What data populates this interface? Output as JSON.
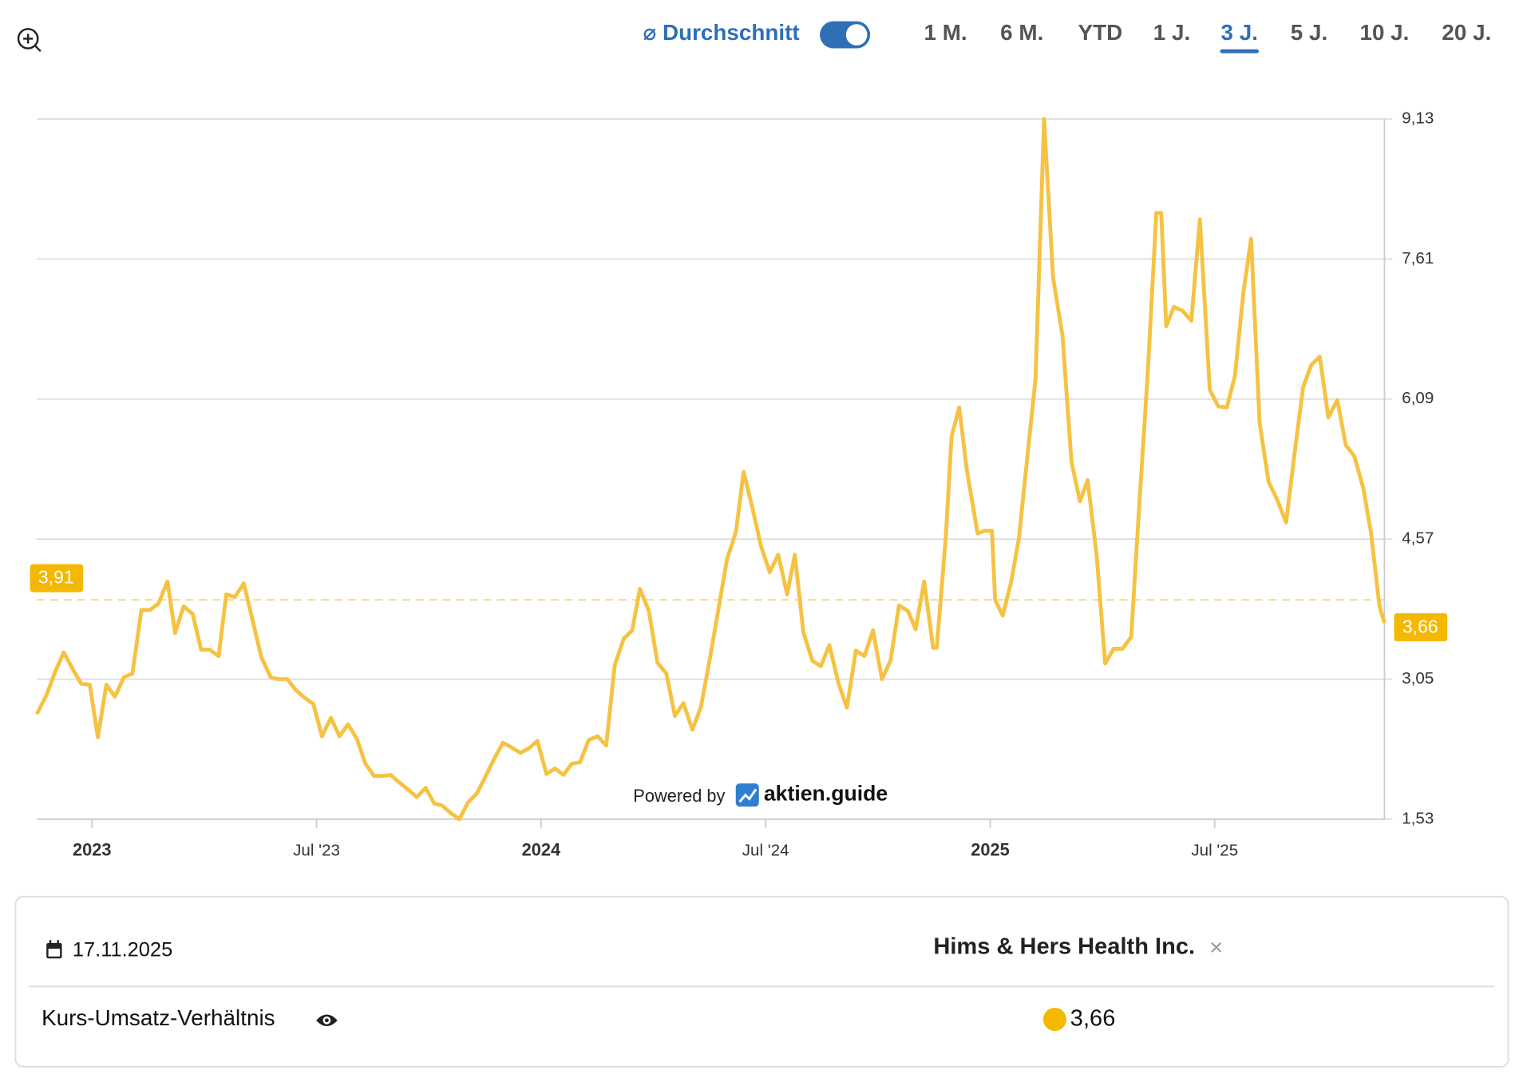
{
  "toolbar": {
    "average_toggle_label": "⌀ Durchschnitt",
    "average_on": true,
    "ranges": [
      "1 M.",
      "6 M.",
      "YTD",
      "1 J.",
      "3 J.",
      "5 J.",
      "10 J.",
      "20 J."
    ],
    "active_range": 4
  },
  "watermark": {
    "prefix": "Powered by",
    "brand": "aktien.guide"
  },
  "chart_data": {
    "type": "line",
    "color": "#f5c242",
    "x": [
      2022.877,
      2022.899,
      2022.918,
      2022.937,
      2022.957,
      2022.976,
      2022.995,
      2023.013,
      2023.032,
      2023.051,
      2023.071,
      2023.09,
      2023.11,
      2023.129,
      2023.148,
      2023.168,
      2023.185,
      2023.204,
      2023.224,
      2023.243,
      2023.262,
      2023.282,
      2023.299,
      2023.318,
      2023.338,
      2023.357,
      2023.377,
      2023.398,
      2023.415,
      2023.435,
      2023.454,
      2023.473,
      2023.493,
      2023.512,
      2023.532,
      2023.551,
      2023.57,
      2023.59,
      2023.609,
      2023.628,
      2023.648,
      2023.665,
      2023.684,
      2023.704,
      2023.723,
      2023.743,
      2023.762,
      2023.779,
      2023.798,
      2023.818,
      2023.837,
      2023.857,
      2023.876,
      2023.895,
      2023.915,
      2023.934,
      2023.954,
      2023.973,
      2023.992,
      2024.012,
      2024.031,
      2024.05,
      2024.068,
      2024.087,
      2024.106,
      2024.126,
      2024.145,
      2024.164,
      2024.184,
      2024.203,
      2024.22,
      2024.24,
      2024.259,
      2024.279,
      2024.298,
      2024.317,
      2024.337,
      2024.356,
      2024.375,
      2024.395,
      2024.414,
      2024.434,
      2024.451,
      2024.47,
      2024.49,
      2024.509,
      2024.528,
      2024.548,
      2024.565,
      2024.584,
      2024.604,
      2024.623,
      2024.642,
      2024.662,
      2024.681,
      2024.701,
      2024.72,
      2024.739,
      2024.759,
      2024.778,
      2024.797,
      2024.817,
      2024.834,
      2024.853,
      2024.873,
      2024.881,
      2024.901,
      2024.914,
      2024.931,
      2024.948,
      2024.972,
      2024.987,
      2025.004,
      2025.011,
      2025.028,
      2025.047,
      2025.064,
      2025.084,
      2025.101,
      2025.12,
      2025.14,
      2025.161,
      2025.181,
      2025.2,
      2025.217,
      2025.237,
      2025.256,
      2025.275,
      2025.295,
      2025.314,
      2025.331,
      2025.351,
      2025.37,
      2025.381,
      2025.392,
      2025.409,
      2025.428,
      2025.448,
      2025.467,
      2025.489,
      2025.508,
      2025.527,
      2025.545,
      2025.564,
      2025.581,
      2025.6,
      2025.62,
      2025.639,
      2025.659,
      2025.678,
      2025.697,
      2025.715,
      2025.734,
      2025.753,
      2025.773,
      2025.792,
      2025.811,
      2025.831,
      2025.848,
      2025.867,
      2025.878
    ],
    "values": [
      2.67,
      2.88,
      3.13,
      3.34,
      3.16,
      3.0,
      2.99,
      2.42,
      2.99,
      2.86,
      3.07,
      3.11,
      3.8,
      3.8,
      3.87,
      4.11,
      3.55,
      3.84,
      3.76,
      3.37,
      3.37,
      3.3,
      3.97,
      3.94,
      4.09,
      3.7,
      3.29,
      3.07,
      3.05,
      3.05,
      2.93,
      2.85,
      2.78,
      2.43,
      2.63,
      2.43,
      2.56,
      2.4,
      2.13,
      2.0,
      2.0,
      2.01,
      1.93,
      1.85,
      1.77,
      1.87,
      1.7,
      1.68,
      1.6,
      1.53,
      1.71,
      1.81,
      1.99,
      2.18,
      2.36,
      2.31,
      2.25,
      2.3,
      2.38,
      2.02,
      2.08,
      2.01,
      2.13,
      2.15,
      2.39,
      2.43,
      2.33,
      3.2,
      3.49,
      3.58,
      4.03,
      3.79,
      3.23,
      3.11,
      2.65,
      2.79,
      2.5,
      2.75,
      3.25,
      3.81,
      4.35,
      4.65,
      5.3,
      4.92,
      4.49,
      4.21,
      4.4,
      3.97,
      4.4,
      3.56,
      3.25,
      3.19,
      3.42,
      3.01,
      2.74,
      3.36,
      3.3,
      3.58,
      3.05,
      3.25,
      3.85,
      3.79,
      3.59,
      4.11,
      3.39,
      3.39,
      4.58,
      5.68,
      6.0,
      5.32,
      4.63,
      4.66,
      4.66,
      3.91,
      3.74,
      4.11,
      4.58,
      5.52,
      6.31,
      9.13,
      7.41,
      6.78,
      5.41,
      4.98,
      5.21,
      4.4,
      3.22,
      3.38,
      3.38,
      3.51,
      4.86,
      6.38,
      8.11,
      8.11,
      6.88,
      7.09,
      7.05,
      6.94,
      8.04,
      6.19,
      6.01,
      6.0,
      6.34,
      7.25,
      7.83,
      5.83,
      5.19,
      5.0,
      4.75,
      5.51,
      6.22,
      6.46,
      6.55,
      5.89,
      6.08,
      5.59,
      5.47,
      5.12,
      4.64,
      3.84,
      3.66
    ],
    "last_value_label": "3,66",
    "average": {
      "value": 3.91,
      "label": "3,91"
    },
    "xlim": [
      2022.877,
      2025.878
    ],
    "xticks": [
      2023,
      {
        "value": 2023.5,
        "label": "Jul '23"
      },
      2024,
      {
        "value": 2024.5,
        "label": "Jul '24"
      },
      2025,
      {
        "value": 2025.5,
        "label": "Jul '25"
      }
    ],
    "ylim": [
      1.53,
      9.13
    ],
    "yticks": [
      {
        "value": 1.53,
        "label": "1,53"
      },
      {
        "value": 3.05,
        "label": "3,05"
      },
      {
        "value": 4.57,
        "label": "4,57"
      },
      {
        "value": 6.09,
        "label": "6,09"
      },
      {
        "value": 7.61,
        "label": "7,61"
      },
      {
        "value": 9.13,
        "label": "9,13"
      }
    ],
    "grid": true
  },
  "table": {
    "date": "17.11.2025",
    "company": "Hims & Hers Health Inc.",
    "close": "×",
    "metric": "Kurs-Umsatz-Verhältnis",
    "value": "3,66"
  }
}
